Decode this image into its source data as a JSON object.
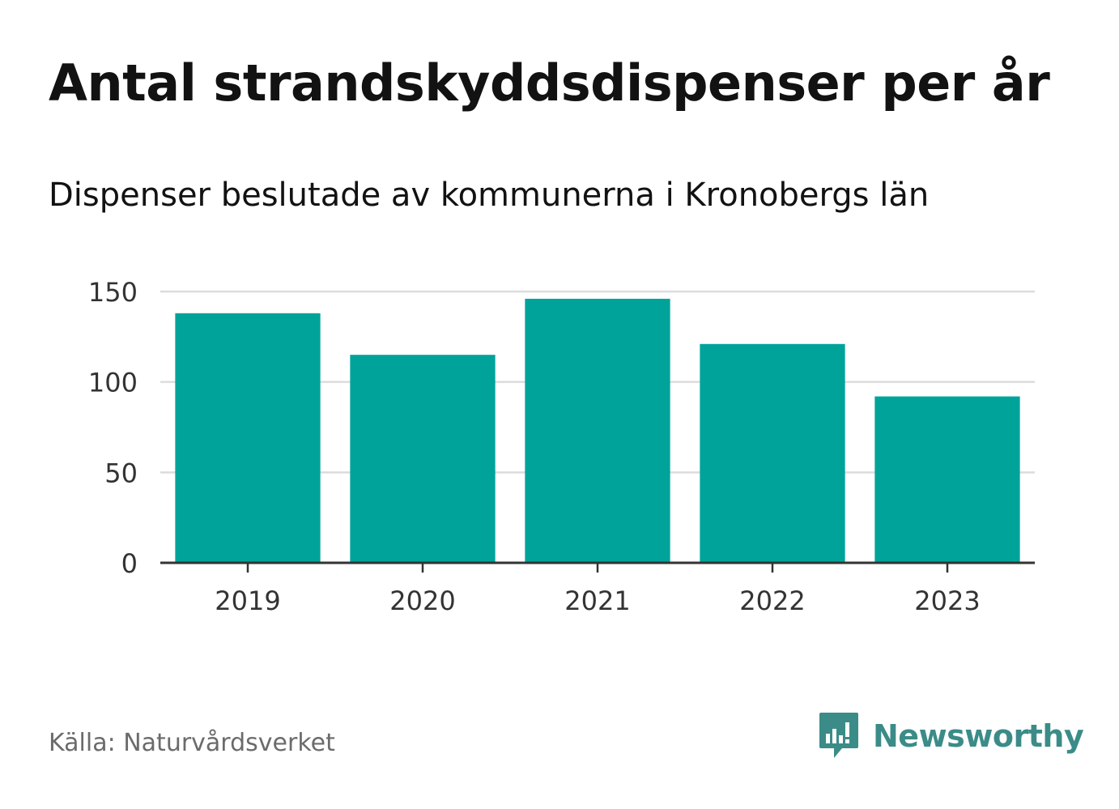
{
  "title": "Antal strandskyddsdispenser per år",
  "subtitle": "Dispenser beslutade av kommunerna i Kronobergs län",
  "source": "Källa: Naturvårdsverket",
  "brand": {
    "name": "Newsworthy",
    "logo_icon": "newsworthy-chart-bubble-icon"
  },
  "colors": {
    "bar": "#00a39a",
    "gridline": "#dcdcdc",
    "axis": "#333333",
    "brand": "#3b8c88",
    "source_text": "#6b6b6b"
  },
  "chart_data": {
    "type": "bar",
    "title": "Antal strandskyddsdispenser per år",
    "subtitle": "Dispenser beslutade av kommunerna i Kronobergs län",
    "categories": [
      "2019",
      "2020",
      "2021",
      "2022",
      "2023"
    ],
    "values": [
      138,
      115,
      146,
      121,
      92
    ],
    "xlabel": "",
    "ylabel": "",
    "ylim": [
      0,
      150
    ],
    "yticks": [
      0,
      50,
      100,
      150
    ],
    "ytick_labels": [
      "0",
      "50",
      "100",
      "150"
    ],
    "grid": true,
    "legend": "none"
  }
}
